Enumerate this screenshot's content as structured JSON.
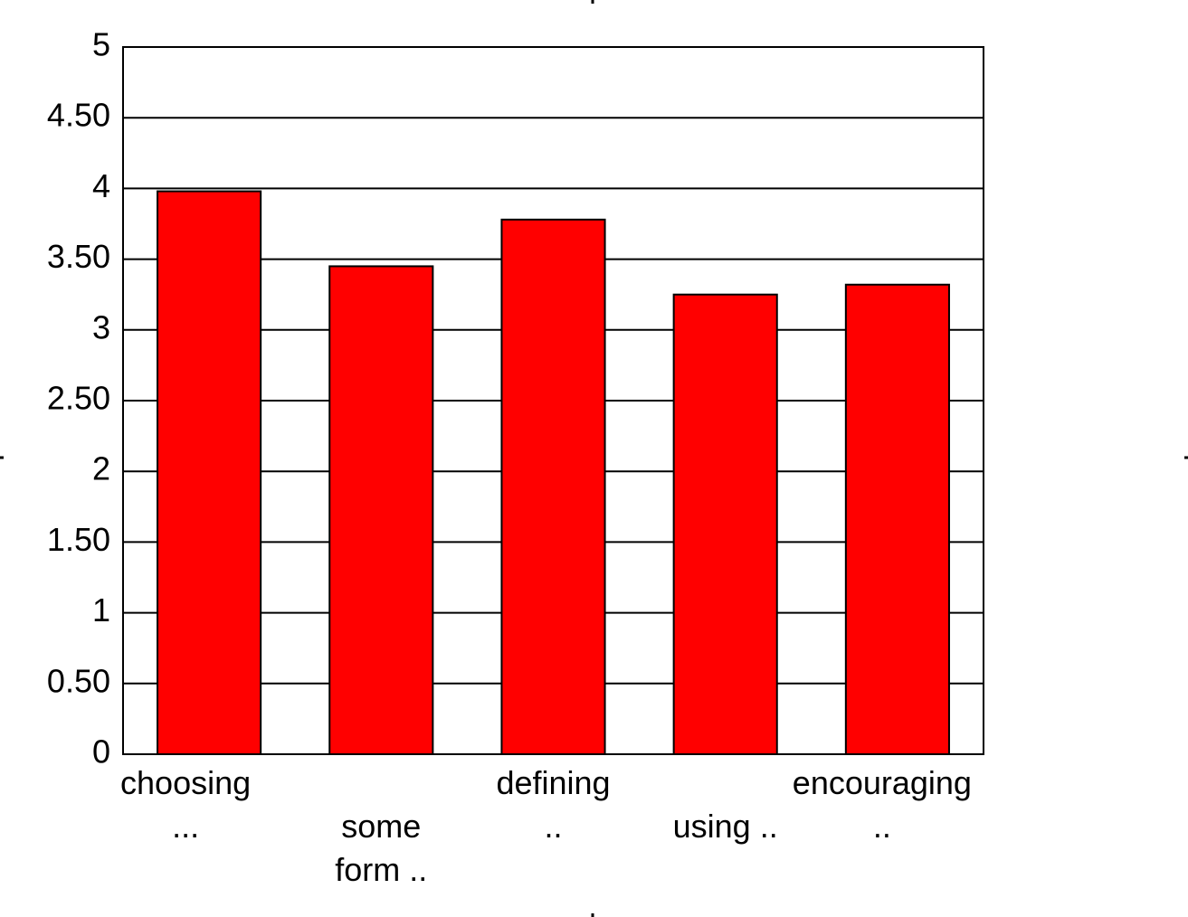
{
  "chart_data": {
    "type": "bar",
    "categories": [
      "choosing\n...",
      "some\nform ..",
      "defining\n..",
      "using ..",
      "encouraging\n.."
    ],
    "values": [
      3.98,
      3.45,
      3.78,
      3.25,
      3.32
    ],
    "color": "#ff0000",
    "ylim": [
      0,
      5
    ],
    "yticks": [
      0,
      {
        "value": 0.5,
        "label": "0.50"
      },
      1,
      {
        "value": 1.5,
        "label": "1.50"
      },
      2,
      {
        "value": 2.5,
        "label": "2.50"
      },
      3,
      {
        "value": 3.5,
        "label": "3.50"
      },
      4,
      {
        "value": 4.5,
        "label": "4.50"
      },
      5
    ],
    "grid": true
  }
}
